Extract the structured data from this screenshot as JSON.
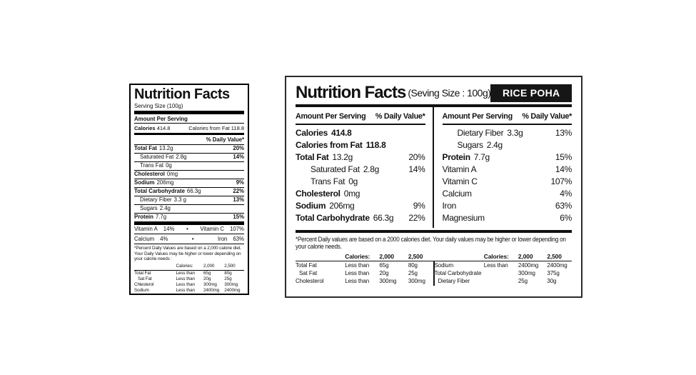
{
  "colors": {
    "ink": "#111111",
    "background": "#ffffff",
    "badge_background": "#161616",
    "badge_text": "#ffffff"
  },
  "left_label": {
    "title": "Nutrition Facts",
    "serving_size": "Serving Size (100g)",
    "amount_per_serving": "Amount Per Serving",
    "calories_label": "Calories",
    "calories_value": "414.8",
    "calories_from_fat": "Calories from Fat 118.8",
    "daily_value_header": "% Daily Value*",
    "rows": [
      {
        "label": "Total Fat",
        "value": "13.2g",
        "dv": "20%",
        "bold": true
      },
      {
        "label": "Saturated Fat",
        "value": "2.8g",
        "dv": "14%",
        "indent": true
      },
      {
        "label": "Trans Fat",
        "value": "0g",
        "dv": "",
        "indent": true
      },
      {
        "label": "Cholesterol",
        "value": "0mg",
        "dv": "",
        "bold": true
      },
      {
        "label": "Sodium",
        "value": "206mg",
        "dv": "9%",
        "bold": true
      },
      {
        "label": "Total Carbohydrate",
        "value": "66.3g",
        "dv": "22%",
        "bold": true
      },
      {
        "label": "Dietary Fiber",
        "value": "3.3 g",
        "dv": "13%",
        "indent": true
      },
      {
        "label": "Sugars",
        "value": "2.4g",
        "dv": "",
        "indent": true
      },
      {
        "label": "Protein",
        "value": "7.7g",
        "dv": "15%",
        "bold": true
      }
    ],
    "bullet": "•",
    "vitamin_rows": [
      {
        "left_name": "Vitamin A",
        "left_value": "14%",
        "right_name": "Vitamin C",
        "right_value": "107%"
      },
      {
        "left_name": "Calcium",
        "left_value": "4%",
        "right_name": "Iron",
        "right_value": "63%"
      }
    ],
    "footnote": "*Percent Daily Values are based on a 2,000 calorie diet. Your Daily Values may be higher or lower depending on your calorie needs :",
    "footer_table": {
      "header": [
        "Calories:",
        "2,000",
        "2,500"
      ],
      "rows": [
        {
          "name": "Total Fat",
          "qualifier": "Less than",
          "v2000": "65g",
          "v2500": "80g"
        },
        {
          "name": "Sat Fat",
          "qualifier": "Less than",
          "v2000": "20g",
          "v2500": "25g",
          "indent": true
        },
        {
          "name": "Chlesterol",
          "qualifier": "Less than",
          "v2000": "300mg",
          "v2500": "300mg"
        },
        {
          "name": "Sodium",
          "qualifier": "Less than",
          "v2000": "2400mg",
          "v2500": "2400mg"
        },
        {
          "name": "Total Carbohydrate",
          "qualifier": "",
          "v2000": "300mg",
          "v2500": "375g"
        },
        {
          "name": "Dietary Fiber",
          "qualifier": "",
          "v2000": "25g",
          "v2500": "30g",
          "indent": true
        }
      ]
    }
  },
  "right_label": {
    "title": "Nutrition Facts",
    "serving_size": "(Seving Size : 100g)",
    "product_badge": "RICE POHA",
    "amount_per_serving": "Amount Per Serving",
    "daily_value_header": "% Daily Value*",
    "left_rows": [
      {
        "label": "Calories",
        "value": "414.8",
        "dv": "",
        "bold": true,
        "value_bold": true
      },
      {
        "label": "Calories from Fat",
        "value": "118.8",
        "dv": "",
        "bold": true,
        "value_bold": true
      },
      {
        "label": "Total Fat",
        "value": "13.2g",
        "dv": "20%",
        "bold": true
      },
      {
        "label": "Saturated Fat",
        "value": "2.8g",
        "dv": "14%",
        "indent": true
      },
      {
        "label": "Trans Fat",
        "value": "0g",
        "dv": "",
        "indent": true
      },
      {
        "label": "Cholesterol",
        "value": "0mg",
        "dv": "",
        "bold": true
      },
      {
        "label": "Sodium",
        "value": "206mg",
        "dv": "9%",
        "bold": true
      },
      {
        "label": "Total Carbohydrate",
        "value": "66.3g",
        "dv": "22%",
        "bold": true
      }
    ],
    "right_rows": [
      {
        "label": "Dietary Fiber",
        "value": "3.3g",
        "dv": "13%",
        "indent": true
      },
      {
        "label": "Sugars",
        "value": "2.4g",
        "dv": "",
        "indent": true
      },
      {
        "label": "Protein",
        "value": "7.7g",
        "dv": "15%",
        "bold": true
      },
      {
        "label": "Vitamin A",
        "value": "",
        "dv": "14%"
      },
      {
        "label": "Vitamin C",
        "value": "",
        "dv": "107%"
      },
      {
        "label": "Calcium",
        "value": "",
        "dv": "4%"
      },
      {
        "label": "Iron",
        "value": "",
        "dv": "63%"
      },
      {
        "label": "Magnesium",
        "value": "",
        "dv": "6%"
      }
    ],
    "footnote": "*Percent Daily values are based on a 2000 calories diet. Your daily values may be higher or lower depending on your calorie needs.",
    "footer_left": {
      "header": [
        "Calories:",
        "2,000",
        "2,500"
      ],
      "rows": [
        {
          "name": "Total Fat",
          "qualifier": "Less than",
          "v2000": "65g",
          "v2500": "80g"
        },
        {
          "name": "Sat Fat",
          "qualifier": "Less than",
          "v2000": "20g",
          "v2500": "25g",
          "indent": true
        },
        {
          "name": "Cholesterol",
          "qualifier": "Less than",
          "v2000": "300mg",
          "v2500": "300mg"
        }
      ]
    },
    "footer_right": {
      "header": [
        "Calories:",
        "2,000",
        "2,500"
      ],
      "rows": [
        {
          "name": "Sodium",
          "qualifier": "Less than",
          "v2000": "2400mg",
          "v2500": "2400mg"
        },
        {
          "name": "Total Carbohydrate",
          "qualifier": "",
          "v2000": "300mg",
          "v2500": "375g"
        },
        {
          "name": "Dietary Fiber",
          "qualifier": "",
          "v2000": "25g",
          "v2500": "30g",
          "indent": true
        }
      ]
    }
  }
}
